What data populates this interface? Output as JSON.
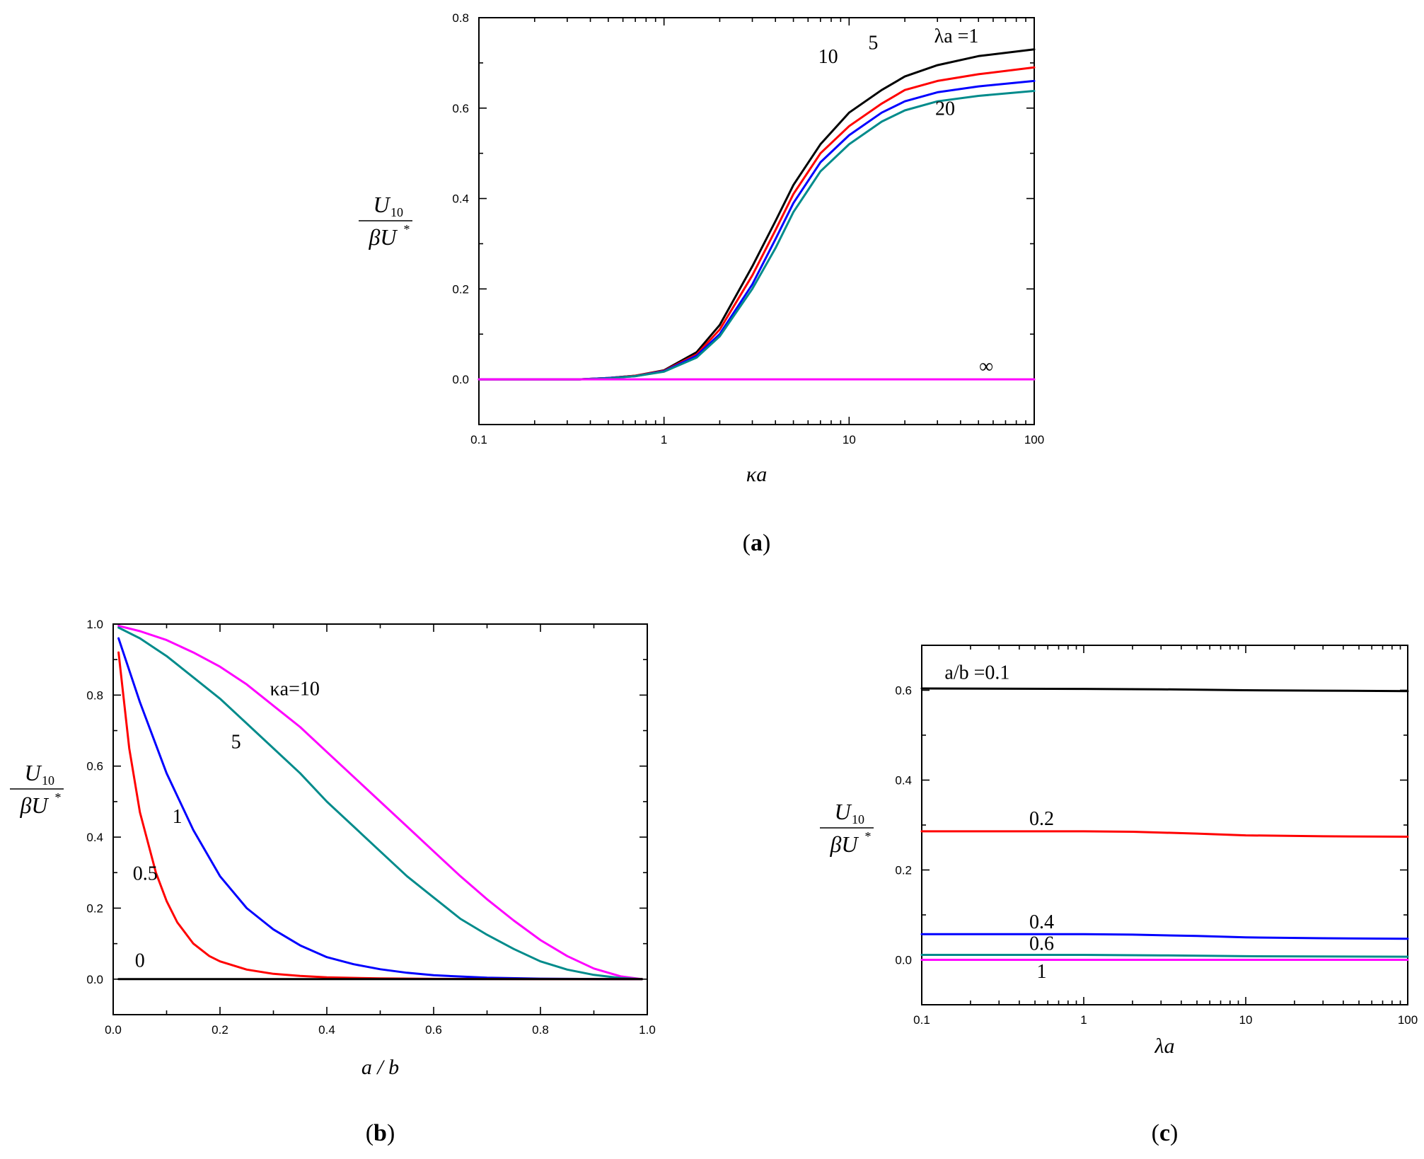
{
  "chart_data": [
    {
      "panel": "a",
      "caption": {
        "open": "(",
        "letter": "a",
        "close": ")"
      },
      "type": "line",
      "xscale": "log",
      "xlim": [
        0.1,
        100
      ],
      "ylim": [
        -0.1,
        0.8
      ],
      "xticks": [
        0.1,
        1,
        10,
        100
      ],
      "xtick_labels": [
        "0.1",
        "1",
        "10",
        "100"
      ],
      "yticks": [
        0.0,
        0.2,
        0.4,
        0.6,
        0.8
      ],
      "ytick_labels": [
        "0.0",
        "0.2",
        "0.4",
        "0.6",
        "0.8"
      ],
      "xlabel": "κa",
      "ylabel": {
        "num": "U",
        "num_sub": "10",
        "den": "βU",
        "den_sup": "*"
      },
      "series": [
        {
          "name": "λa = 1",
          "color": "#000000",
          "x": [
            0.1,
            0.35,
            0.5,
            0.7,
            1,
            1.5,
            2,
            3,
            4,
            5,
            7,
            10,
            15,
            20,
            30,
            50,
            100
          ],
          "y": [
            0,
            0,
            0.003,
            0.008,
            0.02,
            0.06,
            0.12,
            0.25,
            0.35,
            0.43,
            0.52,
            0.59,
            0.64,
            0.67,
            0.695,
            0.715,
            0.73
          ]
        },
        {
          "name": "5",
          "color": "#ff0000",
          "x": [
            0.1,
            0.35,
            0.5,
            0.7,
            1,
            1.5,
            2,
            3,
            4,
            5,
            7,
            10,
            15,
            20,
            30,
            50,
            100
          ],
          "y": [
            0,
            0,
            0.003,
            0.008,
            0.019,
            0.055,
            0.11,
            0.23,
            0.33,
            0.41,
            0.5,
            0.56,
            0.61,
            0.64,
            0.66,
            0.675,
            0.69
          ]
        },
        {
          "name": "10",
          "color": "#0000ff",
          "x": [
            0.1,
            0.35,
            0.5,
            0.7,
            1,
            1.5,
            2,
            3,
            4,
            5,
            7,
            10,
            15,
            20,
            30,
            50,
            100
          ],
          "y": [
            0,
            0,
            0.003,
            0.007,
            0.018,
            0.052,
            0.1,
            0.21,
            0.31,
            0.39,
            0.48,
            0.54,
            0.59,
            0.615,
            0.635,
            0.648,
            0.66
          ]
        },
        {
          "name": "20",
          "color": "#008b8b",
          "x": [
            0.1,
            0.35,
            0.5,
            0.7,
            1,
            1.5,
            2,
            3,
            4,
            5,
            7,
            10,
            15,
            20,
            30,
            50,
            100
          ],
          "y": [
            0,
            0,
            0.002,
            0.007,
            0.017,
            0.048,
            0.095,
            0.2,
            0.29,
            0.37,
            0.46,
            0.52,
            0.57,
            0.595,
            0.615,
            0.627,
            0.638
          ]
        },
        {
          "name": "∞",
          "color": "#ff00ff",
          "x": [
            0.1,
            100
          ],
          "y": [
            0,
            0
          ]
        }
      ],
      "annotations": [
        {
          "text": "λa =1",
          "x": 38,
          "y": 0.745
        },
        {
          "text": "5",
          "x": 13.5,
          "y": 0.73
        },
        {
          "text": "10",
          "x": 7.7,
          "y": 0.7
        },
        {
          "text": "20",
          "x": 33,
          "y": 0.585
        },
        {
          "text": "∞",
          "x": 55,
          "y": 0.015
        }
      ]
    },
    {
      "panel": "b",
      "caption": {
        "open": "(",
        "letter": "b",
        "close": ")"
      },
      "type": "line",
      "xscale": "linear",
      "xlim": [
        0.0,
        1.0
      ],
      "ylim": [
        -0.1,
        1.0
      ],
      "xticks": [
        0.0,
        0.2,
        0.4,
        0.6,
        0.8,
        1.0
      ],
      "xtick_labels": [
        "0.0",
        "0.2",
        "0.4",
        "0.6",
        "0.8",
        "1.0"
      ],
      "yticks": [
        0.0,
        0.2,
        0.4,
        0.6,
        0.8,
        1.0
      ],
      "ytick_labels": [
        "0.0",
        "0.2",
        "0.4",
        "0.6",
        "0.8",
        "1.0"
      ],
      "xlabel": "a / b",
      "ylabel": {
        "num": "U",
        "num_sub": "10",
        "den": "βU",
        "den_sup": "*"
      },
      "series": [
        {
          "name": "κa = 10",
          "color": "#ff00ff",
          "x": [
            0.01,
            0.05,
            0.1,
            0.15,
            0.2,
            0.25,
            0.3,
            0.35,
            0.4,
            0.45,
            0.5,
            0.55,
            0.6,
            0.65,
            0.7,
            0.75,
            0.8,
            0.85,
            0.9,
            0.95,
            0.99
          ],
          "y": [
            0.995,
            0.98,
            0.955,
            0.92,
            0.88,
            0.83,
            0.77,
            0.71,
            0.64,
            0.57,
            0.5,
            0.43,
            0.36,
            0.29,
            0.225,
            0.165,
            0.11,
            0.065,
            0.03,
            0.008,
            0.0
          ]
        },
        {
          "name": "5",
          "color": "#008b8b",
          "x": [
            0.01,
            0.05,
            0.1,
            0.15,
            0.2,
            0.25,
            0.3,
            0.35,
            0.4,
            0.45,
            0.5,
            0.55,
            0.6,
            0.65,
            0.7,
            0.75,
            0.8,
            0.85,
            0.9,
            0.95,
            0.99
          ],
          "y": [
            0.99,
            0.96,
            0.91,
            0.85,
            0.79,
            0.72,
            0.65,
            0.58,
            0.5,
            0.43,
            0.36,
            0.29,
            0.23,
            0.17,
            0.125,
            0.085,
            0.05,
            0.027,
            0.012,
            0.003,
            0.0
          ]
        },
        {
          "name": "1",
          "color": "#0000ff",
          "x": [
            0.01,
            0.05,
            0.1,
            0.15,
            0.2,
            0.25,
            0.3,
            0.35,
            0.4,
            0.45,
            0.5,
            0.55,
            0.6,
            0.7,
            0.8,
            0.9,
            0.99
          ],
          "y": [
            0.96,
            0.78,
            0.58,
            0.42,
            0.29,
            0.2,
            0.14,
            0.095,
            0.062,
            0.042,
            0.028,
            0.018,
            0.011,
            0.004,
            0.0015,
            0.0004,
            0.0
          ]
        },
        {
          "name": "0.5",
          "color": "#ff0000",
          "x": [
            0.01,
            0.03,
            0.05,
            0.08,
            0.1,
            0.12,
            0.15,
            0.18,
            0.2,
            0.25,
            0.3,
            0.35,
            0.4,
            0.5,
            0.6,
            0.8,
            0.99
          ],
          "y": [
            0.92,
            0.65,
            0.47,
            0.3,
            0.22,
            0.16,
            0.1,
            0.065,
            0.05,
            0.027,
            0.015,
            0.009,
            0.005,
            0.002,
            0.0008,
            0.0001,
            0.0
          ]
        },
        {
          "name": "0",
          "color": "#000000",
          "x": [
            0.01,
            0.99
          ],
          "y": [
            0,
            0
          ]
        }
      ],
      "annotations": [
        {
          "text": "κa=10",
          "x": 0.34,
          "y": 0.8
        },
        {
          "text": "5",
          "x": 0.23,
          "y": 0.65
        },
        {
          "text": "1",
          "x": 0.12,
          "y": 0.44
        },
        {
          "text": "0.5",
          "x": 0.06,
          "y": 0.28
        },
        {
          "text": "0",
          "x": 0.05,
          "y": 0.035
        }
      ]
    },
    {
      "panel": "c",
      "caption": {
        "open": "(",
        "letter": "c",
        "close": ")"
      },
      "type": "line",
      "xscale": "log",
      "xlim": [
        0.1,
        100
      ],
      "ylim": [
        -0.1,
        0.7
      ],
      "xticks": [
        0.1,
        1,
        10,
        100
      ],
      "xtick_labels": [
        "0.1",
        "1",
        "10",
        "100"
      ],
      "yticks": [
        0.0,
        0.2,
        0.4,
        0.6
      ],
      "ytick_labels": [
        "0.0",
        "0.2",
        "0.4",
        "0.6"
      ],
      "xlabel": "λa",
      "ylabel": {
        "num": "U",
        "num_sub": "10",
        "den": "βU",
        "den_sup": "*"
      },
      "series": [
        {
          "name": "a/b = 0.1",
          "color": "#000000",
          "x": [
            0.1,
            1,
            3,
            10,
            30,
            100
          ],
          "y": [
            0.604,
            0.603,
            0.602,
            0.6,
            0.599,
            0.598
          ]
        },
        {
          "name": "0.2",
          "color": "#ff0000",
          "x": [
            0.1,
            1,
            2,
            5,
            10,
            30,
            100
          ],
          "y": [
            0.286,
            0.286,
            0.285,
            0.281,
            0.277,
            0.275,
            0.274
          ]
        },
        {
          "name": "0.4",
          "color": "#0000ff",
          "x": [
            0.1,
            1,
            2,
            5,
            10,
            30,
            100
          ],
          "y": [
            0.057,
            0.057,
            0.056,
            0.053,
            0.05,
            0.048,
            0.047
          ]
        },
        {
          "name": "0.6",
          "color": "#008b8b",
          "x": [
            0.1,
            1,
            3,
            10,
            100
          ],
          "y": [
            0.011,
            0.011,
            0.01,
            0.008,
            0.007
          ]
        },
        {
          "name": "1",
          "color": "#ff00ff",
          "x": [
            0.1,
            100
          ],
          "y": [
            0,
            0
          ]
        }
      ],
      "annotations": [
        {
          "text": "a/b =0.1",
          "x": 0.22,
          "y": 0.625
        },
        {
          "text": "0.2",
          "x": 0.55,
          "y": 0.3
        },
        {
          "text": "0.4",
          "x": 0.55,
          "y": 0.07
        },
        {
          "text": "0.6",
          "x": 0.55,
          "y": 0.022
        },
        {
          "text": "1",
          "x": 0.55,
          "y": -0.04
        }
      ]
    }
  ]
}
